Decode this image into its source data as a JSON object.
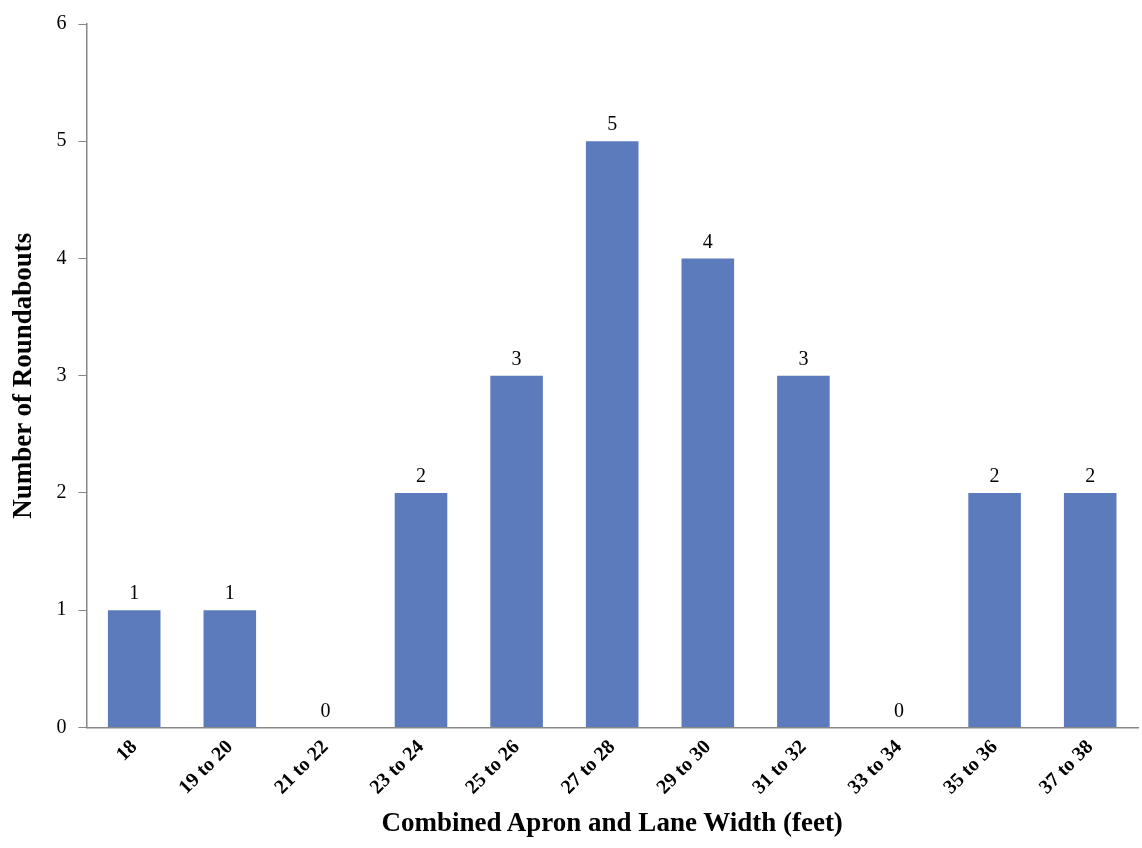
{
  "chart_data": {
    "type": "bar",
    "xlabel": "Combined Apron and Lane Width (feet)",
    "ylabel": "Number of Roundabouts",
    "categories": [
      "18",
      "19 to 20",
      "21 to 22",
      "23 to 24",
      "25 to 26",
      "27 to 28",
      "29 to 30",
      "31 to 32",
      "33 to 34",
      "35 to 36",
      "37 to 38"
    ],
    "values": [
      1,
      1,
      0,
      2,
      3,
      5,
      4,
      3,
      0,
      2,
      2
    ],
    "color": "#5b7bbd",
    "ylim": [
      0,
      6
    ],
    "yticks": [
      0,
      1,
      2,
      3,
      4,
      5,
      6
    ],
    "grid": false,
    "legend": false,
    "data_labels": true
  }
}
